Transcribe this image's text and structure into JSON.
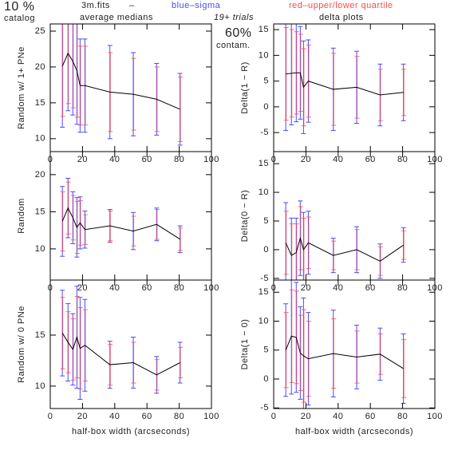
{
  "header": {
    "pct": "10 %",
    "catalog": "catalog",
    "file": "3m.fits",
    "dash": "–",
    "medians": "average medians",
    "blue": "blue–sigma",
    "red": "red–upper/lower quartile",
    "trials": "19+ trials",
    "contam_pct": "60%",
    "contam": "contam.",
    "delta": "delta plots",
    "blue_color": "#4a4aff",
    "red_color": "#ff4a4a"
  },
  "chart_data": [
    {
      "type": "errorline",
      "ylabel": "Random w/ 1+ PNe",
      "x": [
        7.5,
        11,
        14,
        16.5,
        18.5,
        21.5,
        37,
        51.5,
        66,
        80.5
      ],
      "values": [
        20.1,
        21.9,
        20.8,
        19.5,
        17.4,
        17.4,
        16.5,
        16.2,
        15.5,
        14.1
      ],
      "sigma": [
        8.5,
        8,
        7.5,
        7.5,
        6.5,
        6.5,
        6.5,
        5.8,
        5,
        5
      ],
      "quartile": [
        7,
        7,
        6.5,
        6.5,
        5.5,
        5.5,
        5.5,
        5,
        4.5,
        4.5
      ],
      "xlim": [
        0,
        100
      ],
      "xticks": [
        0,
        20,
        40,
        60,
        80,
        100
      ],
      "ylim": [
        8.2,
        26
      ],
      "yticks": [
        10,
        15,
        20,
        25
      ]
    },
    {
      "type": "errorline",
      "ylabel": "Delta(1 − R)",
      "x": [
        7.5,
        11,
        14,
        16.5,
        18.5,
        21.5,
        37,
        51.5,
        66,
        80.5
      ],
      "values": [
        6.4,
        6.5,
        6.6,
        6.6,
        3.8,
        5,
        3.4,
        3.8,
        2.3,
        2.8
      ],
      "sigma": [
        11,
        10,
        9.5,
        9,
        9,
        8,
        8,
        7,
        6,
        5.5
      ],
      "quartile": [
        9,
        8.5,
        8,
        7.5,
        7.5,
        7,
        7,
        6,
        5,
        4.5
      ],
      "xlim": [
        0,
        100
      ],
      "xticks": [
        0,
        20,
        40,
        60,
        80,
        100
      ],
      "ylim": [
        -8.7,
        16.1
      ],
      "yticks": [
        -5,
        0,
        5,
        10,
        15
      ]
    },
    {
      "type": "errorline",
      "ylabel": "Random",
      "x": [
        7.5,
        11,
        14,
        16.5,
        18.5,
        21.5,
        37,
        51.5,
        66,
        80.5
      ],
      "values": [
        13.7,
        15.5,
        14.2,
        12.9,
        13.5,
        12.6,
        13.1,
        12.4,
        13.3,
        11.3
      ],
      "sigma": [
        4.7,
        4,
        3.5,
        4,
        3.5,
        2.5,
        2.2,
        2.5,
        2.2,
        1.8
      ],
      "quartile": [
        4,
        3.5,
        3,
        3.5,
        3,
        2,
        2,
        2,
        2,
        1.5
      ],
      "xlim": [
        0,
        100
      ],
      "xticks": [
        0,
        20,
        40,
        60,
        80,
        100
      ],
      "ylim": [
        5.8,
        23.1
      ],
      "yticks": [
        10,
        15,
        20
      ]
    },
    {
      "type": "errorline",
      "ylabel": "Delta(0 − R)",
      "x": [
        7.5,
        11,
        14,
        16.5,
        18.5,
        21.5,
        37,
        51.5,
        66,
        80.5
      ],
      "values": [
        1.2,
        -1,
        -0.5,
        2,
        0,
        1.2,
        -1,
        0,
        -2,
        0.8
      ],
      "sigma": [
        7,
        6.5,
        6,
        6.5,
        6.5,
        5.5,
        3,
        4,
        3,
        3
      ],
      "quartile": [
        5.5,
        5.5,
        5,
        5.5,
        5.5,
        4.5,
        2.5,
        3.5,
        2.5,
        2.5
      ],
      "xlim": [
        0,
        100
      ],
      "xticks": [
        0,
        20,
        40,
        60,
        80,
        100
      ],
      "ylim": [
        -5.3,
        17.1
      ],
      "yticks": [
        -5,
        0,
        5,
        10,
        15
      ]
    },
    {
      "type": "errorline",
      "ylabel": "Random w/ 0 PNe",
      "xlabel": "half-box width (arcseconds)",
      "x": [
        7.5,
        11,
        14,
        16.5,
        18.5,
        21.5,
        37,
        51.5,
        66,
        80.5
      ],
      "values": [
        15.2,
        14.3,
        13.6,
        14.8,
        13.7,
        14,
        12.1,
        12.3,
        11.1,
        12.3
      ],
      "sigma": [
        4.2,
        3.8,
        3.5,
        5,
        5,
        4.5,
        2.3,
        2.5,
        1.8,
        2
      ],
      "quartile": [
        3.5,
        3,
        3,
        4,
        4,
        3.5,
        2,
        2,
        1.5,
        1.5
      ],
      "xlim": [
        0,
        100
      ],
      "xticks": [
        0,
        20,
        40,
        60,
        80,
        100
      ],
      "ylim": [
        7.8,
        20.4
      ],
      "yticks": [
        10,
        15
      ]
    },
    {
      "type": "errorline",
      "ylabel": "Delta(1 − 0)",
      "xlabel": "half-box width (arcseconds)",
      "x": [
        7.5,
        11,
        14,
        16.5,
        18.5,
        21.5,
        37,
        51.5,
        66,
        80.5
      ],
      "values": [
        5,
        7.4,
        7.2,
        4.5,
        4,
        3.5,
        4.4,
        3.8,
        4.3,
        1.8
      ],
      "sigma": [
        8,
        10,
        9.5,
        8,
        10,
        8,
        7.5,
        5.5,
        4.5,
        6
      ],
      "quartile": [
        6.5,
        8,
        8,
        6.5,
        8,
        6.5,
        6,
        4.5,
        3.5,
        5
      ],
      "xlim": [
        0,
        100
      ],
      "xticks": [
        0,
        20,
        40,
        60,
        80,
        100
      ],
      "ylim": [
        -5.1,
        17.1
      ],
      "yticks": [
        -5,
        0,
        5,
        10,
        15
      ]
    }
  ]
}
